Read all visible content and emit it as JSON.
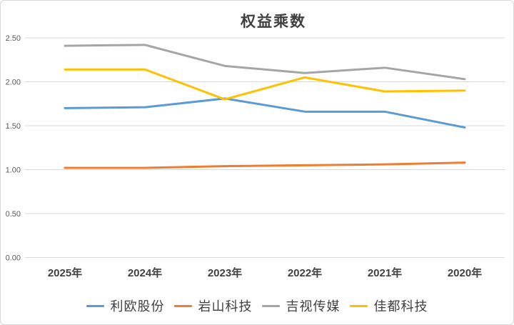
{
  "chart_data": {
    "type": "line",
    "title": "权益乘数",
    "categories": [
      "2025年",
      "2024年",
      "2023年",
      "2022年",
      "2021年",
      "2020年"
    ],
    "series": [
      {
        "name": "利欧股份",
        "color": "#5B9BD5",
        "values": [
          1.7,
          1.71,
          1.81,
          1.66,
          1.66,
          1.48
        ]
      },
      {
        "name": "岩山科技",
        "color": "#ED7D31",
        "values": [
          1.02,
          1.02,
          1.04,
          1.05,
          1.06,
          1.08
        ]
      },
      {
        "name": "吉视传媒",
        "color": "#A5A5A5",
        "values": [
          2.41,
          2.42,
          2.18,
          2.1,
          2.16,
          2.03
        ]
      },
      {
        "name": "佳都科技",
        "color": "#FFC000",
        "values": [
          2.14,
          2.14,
          1.8,
          2.05,
          1.89,
          1.9
        ]
      }
    ],
    "xlabel": "",
    "ylabel": "",
    "ylim": [
      0,
      2.5
    ],
    "y_ticks": [
      "0.00",
      "0.50",
      "1.00",
      "1.50",
      "2.00",
      "2.50"
    ],
    "grid": "horizontal",
    "legend_position": "bottom",
    "colors": {
      "grid": "#D9D9D9",
      "tick_label": "#595959",
      "axis_label": "#404040",
      "title": "#404040",
      "background": "#FFFFFF",
      "border": "#D7D7D7"
    }
  }
}
